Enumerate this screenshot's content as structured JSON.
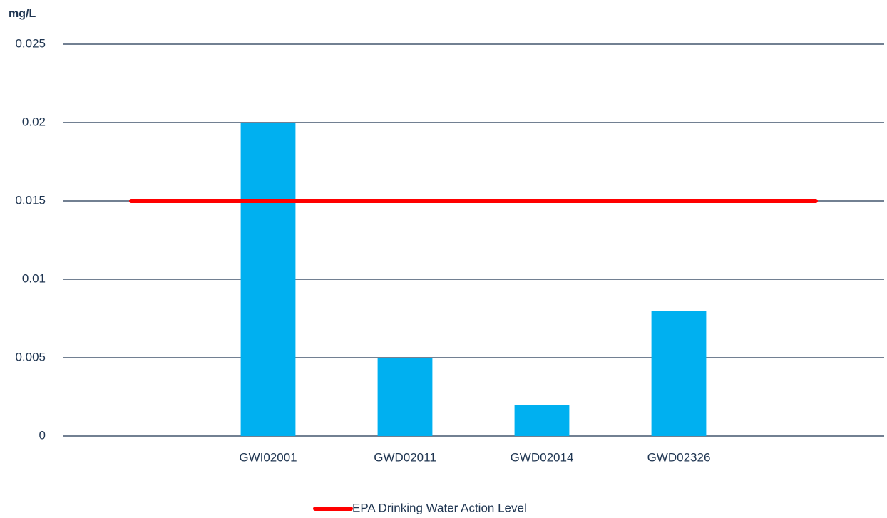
{
  "chart_data": {
    "type": "bar",
    "y_label": "mg/L",
    "categories": [
      null,
      "GWI02001",
      "GWD02011",
      "GWD02014",
      "GWD02326",
      null
    ],
    "series": [
      {
        "type": "bar",
        "color": "#00b0f0",
        "values": [
          null,
          0.02,
          0.005,
          0.002,
          0.008,
          null
        ]
      },
      {
        "type": "line",
        "name": "EPA Drinking Water Action Level",
        "color": "#ff0000",
        "values": [
          0.015,
          0.015,
          0.015,
          0.015,
          0.015,
          0.015
        ]
      }
    ],
    "ylim": [
      0,
      0.025
    ],
    "yticks": [
      0,
      0.005,
      0.01,
      0.015,
      0.02,
      0.025
    ],
    "grid": true,
    "legend": "bottom"
  }
}
